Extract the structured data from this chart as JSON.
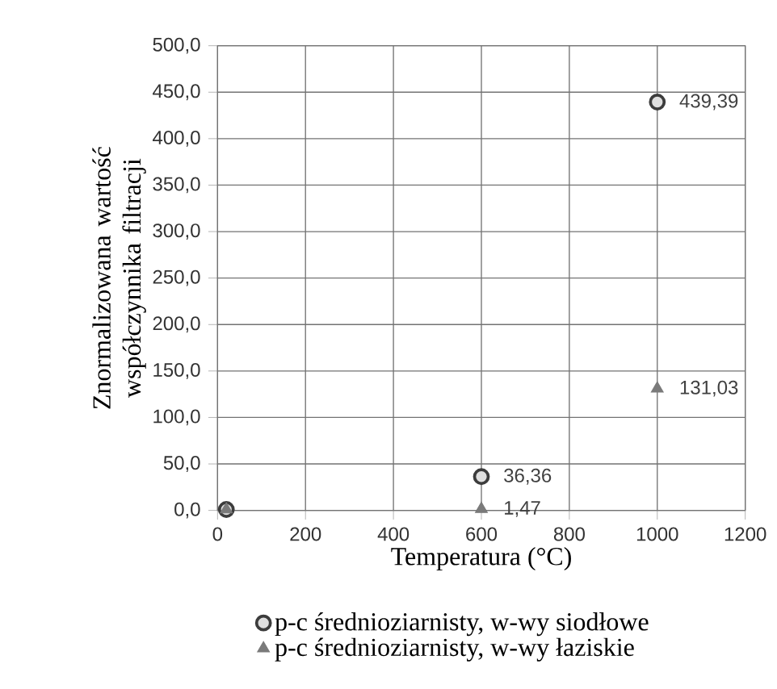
{
  "chart_data": {
    "type": "scatter",
    "xlabel": "Temperatura (°C)",
    "ylabel": "Znormalizowana wartość współczynnika filtracji",
    "xlim": [
      0,
      1200
    ],
    "xticks": [
      0,
      200,
      400,
      600,
      800,
      1000,
      1200
    ],
    "ylim": [
      0,
      500
    ],
    "yticks": [
      {
        "value": 0,
        "label": "0,0"
      },
      {
        "value": 50,
        "label": "50,0"
      },
      {
        "value": 100,
        "label": "100,0"
      },
      {
        "value": 150,
        "label": "150,0"
      },
      {
        "value": 200,
        "label": "200,0"
      },
      {
        "value": 250,
        "label": "250,0"
      },
      {
        "value": 300,
        "label": "300,0"
      },
      {
        "value": 350,
        "label": "350,0"
      },
      {
        "value": 400,
        "label": "400,0"
      },
      {
        "value": 450,
        "label": "450,0"
      },
      {
        "value": 500,
        "label": "500,0"
      }
    ],
    "grid": true,
    "legend": "bottom",
    "series": [
      {
        "name": "p-c  średnioziarnisty, w-wy siodłowe",
        "color": "#3c3c3c",
        "marker": "circle",
        "x": [
          20,
          600,
          1000
        ],
        "values": [
          1,
          36.36,
          439.39
        ],
        "value_labels": [
          null,
          "36,36",
          "439,39"
        ]
      },
      {
        "name": "p-c  średnioziarnisty, w-wy łaziskie",
        "color": "#7a7a7a",
        "marker": "triangle",
        "x": [
          20,
          600,
          1000
        ],
        "values": [
          1,
          1.47,
          131.03
        ],
        "value_labels": [
          null,
          "1,47",
          "131,03"
        ]
      }
    ]
  }
}
